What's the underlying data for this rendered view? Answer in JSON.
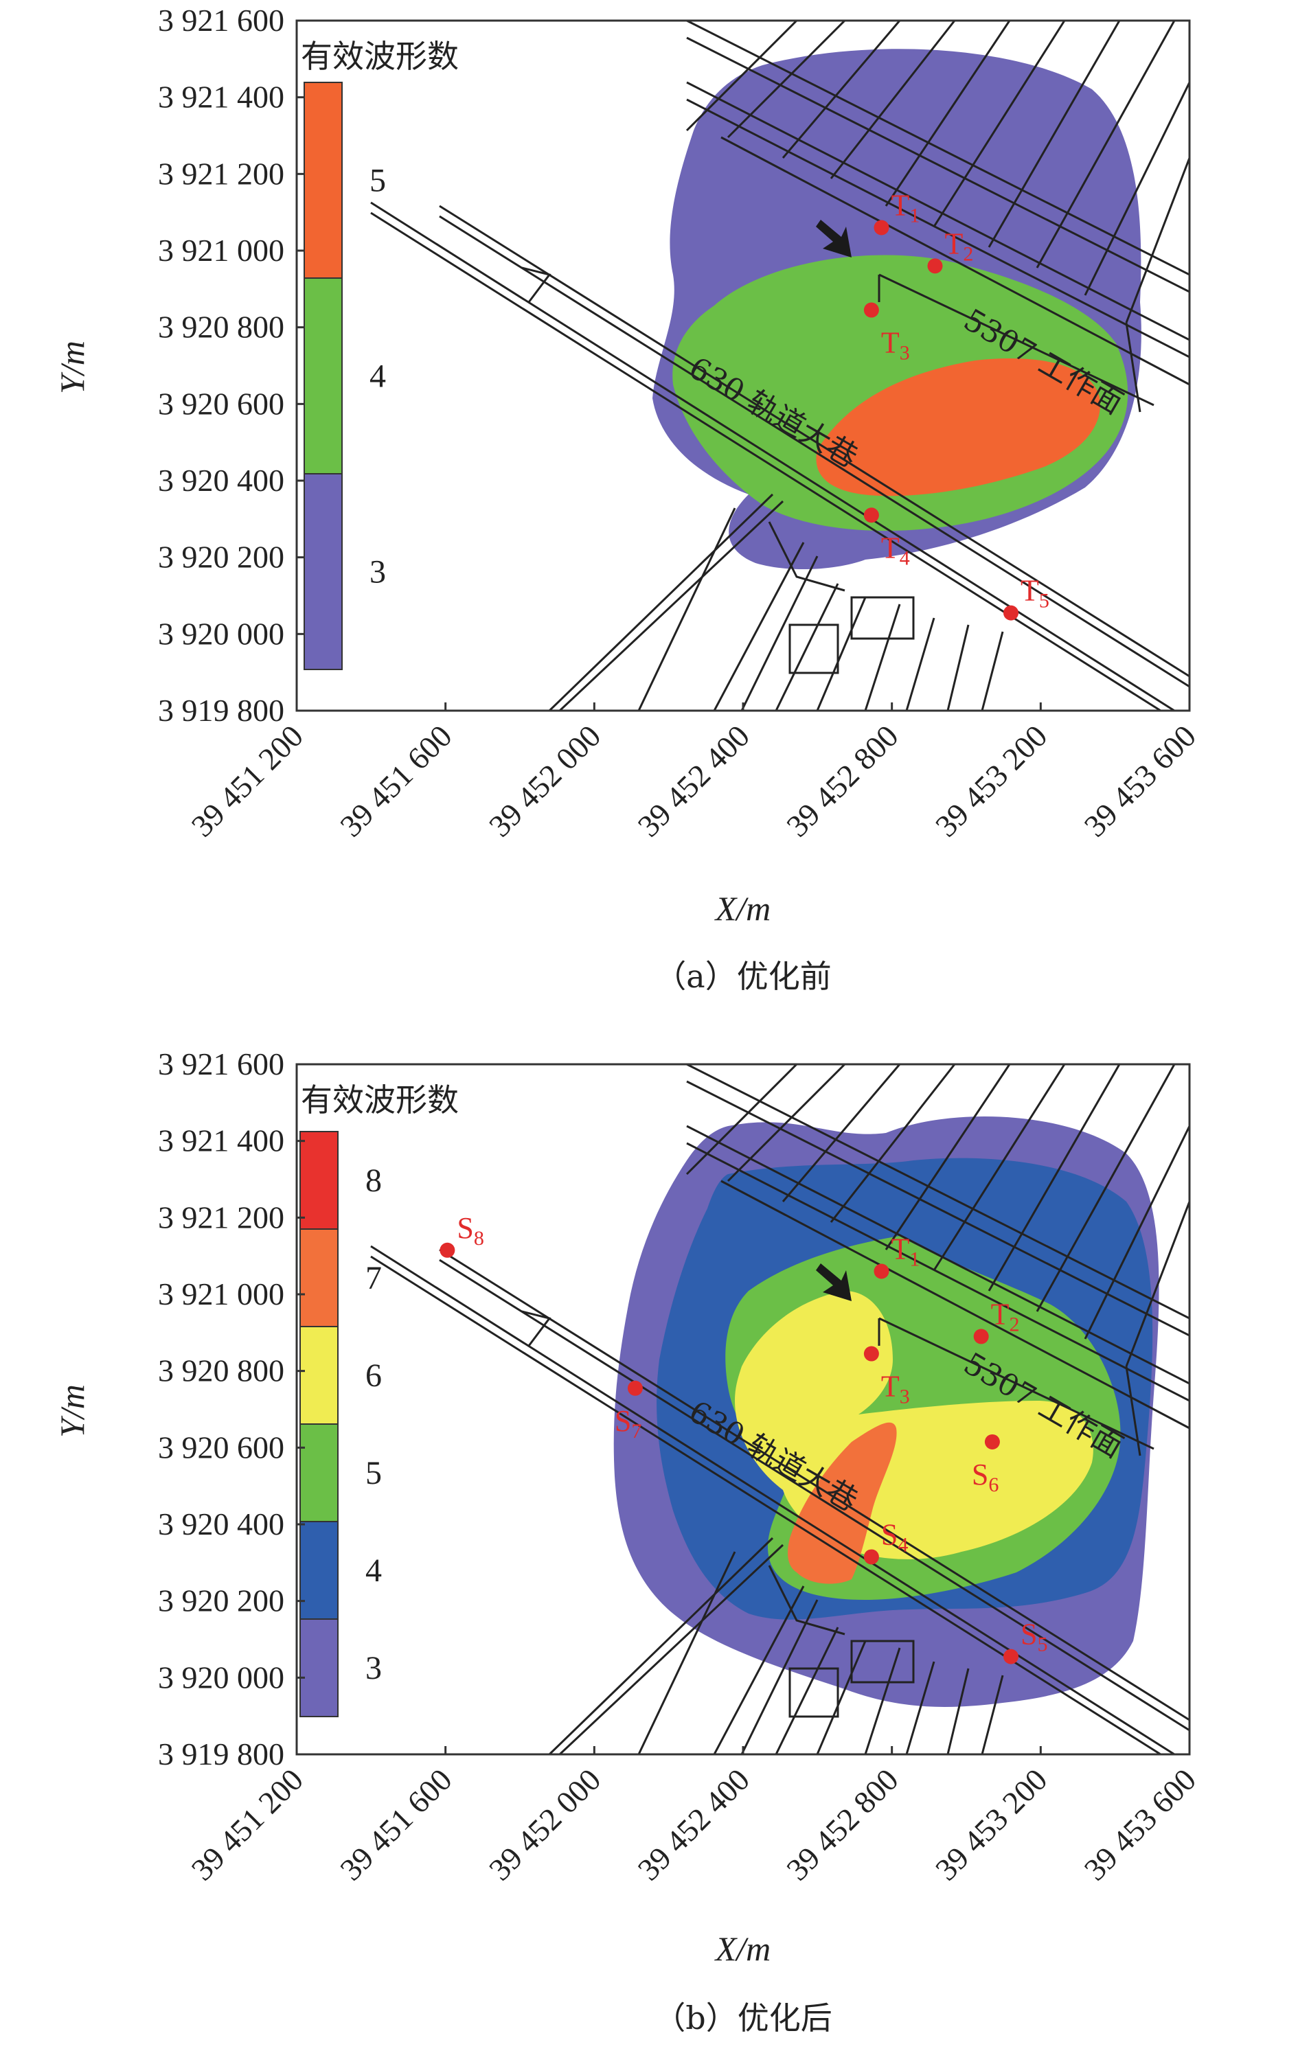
{
  "chart_data": [
    {
      "type": "contour",
      "panel_id": "a",
      "caption": "（a）优化前",
      "xlabel": "X/m",
      "ylabel": "Y/m",
      "xlim": [
        39451200,
        39453600
      ],
      "ylim": [
        3919800,
        3921600
      ],
      "x_ticks": [
        "39 451 200",
        "39 451 600",
        "39 452 000",
        "39 452 400",
        "39 452 800",
        "39 453 200",
        "39 453 600"
      ],
      "y_ticks": [
        "3 921 600",
        "3 921 400",
        "3 921 200",
        "3 921 000",
        "3 920 800",
        "3 920 600",
        "3 920 400",
        "3 920 200",
        "3 920 000",
        "3 919 800"
      ],
      "legend_title": "有效波形数",
      "legend": [
        {
          "value": "5",
          "color": "#f26531"
        },
        {
          "value": "4",
          "color": "#6bbf47"
        },
        {
          "value": "3",
          "color": "#6e66b6"
        }
      ],
      "stations": [
        {
          "base": "T",
          "sub": "1",
          "x": 39452772,
          "y": 3921060
        },
        {
          "base": "T",
          "sub": "2",
          "x": 39452916,
          "y": 3920960
        },
        {
          "base": "T",
          "sub": "3",
          "x": 39452745,
          "y": 3920845
        },
        {
          "base": "T",
          "sub": "4",
          "x": 39452745,
          "y": 3920310
        },
        {
          "base": "T",
          "sub": "5",
          "x": 39453120,
          "y": 3920055
        }
      ],
      "annotations": [
        "5307 工作面",
        "630 轨道大巷"
      ]
    },
    {
      "type": "contour",
      "panel_id": "b",
      "caption": "（b）优化后",
      "xlabel": "X/m",
      "ylabel": "Y/m",
      "xlim": [
        39451200,
        39453600
      ],
      "ylim": [
        3919800,
        3921600
      ],
      "x_ticks": [
        "39 451 200",
        "39 451 600",
        "39 452 000",
        "39 452 400",
        "39 452 800",
        "39 453 200",
        "39 453 600"
      ],
      "y_ticks": [
        "3 921 600",
        "3 921 400",
        "3 921 200",
        "3 921 000",
        "3 920 800",
        "3 920 600",
        "3 920 400",
        "3 920 200",
        "3 920 000",
        "3 919 800"
      ],
      "legend_title": "有效波形数",
      "legend": [
        {
          "value": "8",
          "color": "#e8322e"
        },
        {
          "value": "7",
          "color": "#f2713b"
        },
        {
          "value": "6",
          "color": "#f0ec52"
        },
        {
          "value": "5",
          "color": "#6bbf47"
        },
        {
          "value": "4",
          "color": "#2f5fae"
        },
        {
          "value": "3",
          "color": "#6e66b6"
        }
      ],
      "stations": [
        {
          "base": "T",
          "sub": "1",
          "x": 39452772,
          "y": 3921060
        },
        {
          "base": "T",
          "sub": "2",
          "x": 39453040,
          "y": 3920890
        },
        {
          "base": "T",
          "sub": "3",
          "x": 39452745,
          "y": 3920845
        },
        {
          "base": "S",
          "sub": "4",
          "x": 39452745,
          "y": 3920315
        },
        {
          "base": "S",
          "sub": "5",
          "x": 39453120,
          "y": 3920055
        },
        {
          "base": "S",
          "sub": "6",
          "x": 39453070,
          "y": 3920615
        },
        {
          "base": "S",
          "sub": "7",
          "x": 39452110,
          "y": 3920755
        },
        {
          "base": "S",
          "sub": "8",
          "x": 39451605,
          "y": 3921115
        }
      ],
      "annotations": [
        "5307 工作面",
        "630 轨道大巷"
      ]
    }
  ]
}
